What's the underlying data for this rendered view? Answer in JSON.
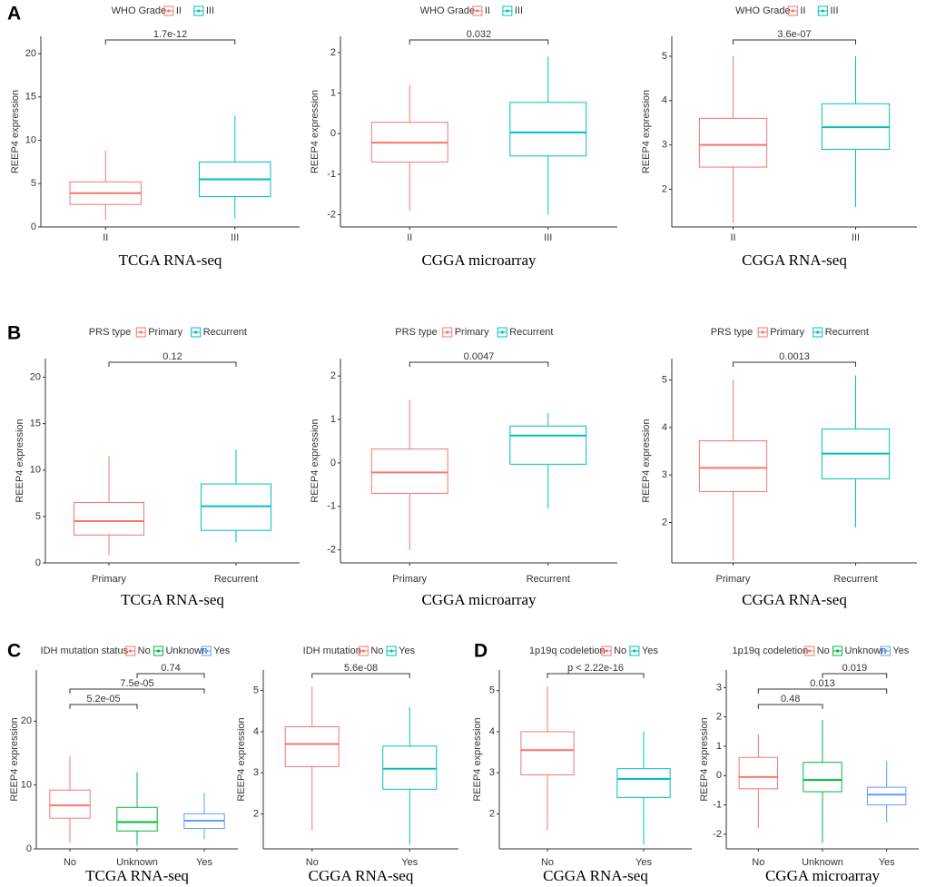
{
  "panel_labels": [
    "A",
    "B",
    "C",
    "D"
  ],
  "chart_data": [
    {
      "type": "box",
      "legend_title": "WHO Grade",
      "categories": [
        "II",
        "III"
      ],
      "colors": [
        "#F8766D",
        "#00BFC4"
      ],
      "ylabel": "REEP4 expression",
      "title": "TCGA RNA-seq",
      "ylim": [
        0,
        22
      ],
      "yticks": [
        0,
        5,
        10,
        15,
        20
      ],
      "boxes": [
        {
          "low": 0.8,
          "q1": 2.6,
          "median": 3.9,
          "q3": 5.2,
          "high": 8.8
        },
        {
          "low": 1,
          "q1": 3.5,
          "median": 5.5,
          "q3": 7.5,
          "high": 12.8
        }
      ],
      "comparisons": [
        {
          "pair": [
            "II",
            "III"
          ],
          "label": "1.7e-12"
        }
      ]
    },
    {
      "type": "box",
      "legend_title": "WHO Grade",
      "categories": [
        "II",
        "III"
      ],
      "colors": [
        "#F8766D",
        "#00BFC4"
      ],
      "ylabel": "REEP4 expression",
      "title": "CGGA microarray",
      "ylim": [
        -2.3,
        2.4
      ],
      "yticks": [
        -2,
        -1,
        0,
        1,
        2
      ],
      "boxes": [
        {
          "low": -1.9,
          "q1": -0.7,
          "median": -0.22,
          "q3": 0.28,
          "high": 1.2
        },
        {
          "low": -2.0,
          "q1": -0.55,
          "median": 0.03,
          "q3": 0.77,
          "high": 1.9
        }
      ],
      "comparisons": [
        {
          "pair": [
            "II",
            "III"
          ],
          "label": "0.032"
        }
      ]
    },
    {
      "type": "box",
      "legend_title": "WHO Grade",
      "categories": [
        "II",
        "III"
      ],
      "colors": [
        "#F8766D",
        "#00BFC4"
      ],
      "ylabel": "REEP4 expression",
      "title": "CGGA RNA-seq",
      "ylim": [
        1.15,
        5.45
      ],
      "yticks": [
        2,
        3,
        4,
        5
      ],
      "boxes": [
        {
          "low": 1.25,
          "q1": 2.5,
          "median": 3.0,
          "q3": 3.6,
          "high": 5.0
        },
        {
          "low": 1.6,
          "q1": 2.9,
          "median": 3.4,
          "q3": 3.93,
          "high": 5.0
        }
      ],
      "comparisons": [
        {
          "pair": [
            "II",
            "III"
          ],
          "label": "3.6e-07"
        }
      ]
    },
    {
      "type": "box",
      "legend_title": "PRS type",
      "categories": [
        "Primary",
        "Recurrent"
      ],
      "colors": [
        "#F8766D",
        "#00BFC4"
      ],
      "ylabel": "REEP4 expression",
      "title": "TCGA RNA-seq",
      "ylim": [
        0,
        22
      ],
      "yticks": [
        0,
        5,
        10,
        15,
        20
      ],
      "boxes": [
        {
          "low": 0.8,
          "q1": 3.0,
          "median": 4.5,
          "q3": 6.5,
          "high": 11.5
        },
        {
          "low": 2.2,
          "q1": 3.5,
          "median": 6.1,
          "q3": 8.5,
          "high": 12.2
        }
      ],
      "comparisons": [
        {
          "pair": [
            "Primary",
            "Recurrent"
          ],
          "label": "0.12"
        }
      ]
    },
    {
      "type": "box",
      "legend_title": "PRS type",
      "categories": [
        "Primary",
        "Recurrent"
      ],
      "colors": [
        "#F8766D",
        "#00BFC4"
      ],
      "ylabel": "REEP4 expression",
      "title": "CGGA microarray",
      "ylim": [
        -2.3,
        2.4
      ],
      "yticks": [
        -2,
        -1,
        0,
        1,
        2
      ],
      "boxes": [
        {
          "low": -2.0,
          "q1": -0.7,
          "median": -0.22,
          "q3": 0.32,
          "high": 1.45
        },
        {
          "low": -1.05,
          "q1": -0.03,
          "median": 0.63,
          "q3": 0.85,
          "high": 1.15
        }
      ],
      "comparisons": [
        {
          "pair": [
            "Primary",
            "Recurrent"
          ],
          "label": "0.0047"
        }
      ]
    },
    {
      "type": "box",
      "legend_title": "PRS type",
      "categories": [
        "Primary",
        "Recurrent"
      ],
      "colors": [
        "#F8766D",
        "#00BFC4"
      ],
      "ylabel": "REEP4 expression",
      "title": "CGGA RNA-seq",
      "ylim": [
        1.15,
        5.45
      ],
      "yticks": [
        2,
        3,
        4,
        5
      ],
      "boxes": [
        {
          "low": 1.2,
          "q1": 2.65,
          "median": 3.15,
          "q3": 3.72,
          "high": 5.0
        },
        {
          "low": 1.9,
          "q1": 2.92,
          "median": 3.45,
          "q3": 3.97,
          "high": 5.1
        }
      ],
      "comparisons": [
        {
          "pair": [
            "Primary",
            "Recurrent"
          ],
          "label": "0.0013"
        }
      ]
    },
    {
      "type": "box",
      "legend_title": "IDH mutation status",
      "categories": [
        "No",
        "Unknown",
        "Yes"
      ],
      "colors": [
        "#F8766D",
        "#00BA38",
        "#619CFF"
      ],
      "ylabel": "REEP4 expression",
      "title": "TCGA RNA-seq",
      "ylim": [
        0,
        28
      ],
      "yticks": [
        0,
        10,
        20
      ],
      "boxes": [
        {
          "low": 1,
          "q1": 4.8,
          "median": 6.8,
          "q3": 9.2,
          "high": 14.5
        },
        {
          "low": 0.5,
          "q1": 2.8,
          "median": 4.2,
          "q3": 6.5,
          "high": 12
        },
        {
          "low": 1.5,
          "q1": 3.2,
          "median": 4.4,
          "q3": 5.5,
          "high": 8.8
        }
      ],
      "comparisons": [
        {
          "pair": [
            "No",
            "Unknown"
          ],
          "label": "5.2e-05"
        },
        {
          "pair": [
            "No",
            "Yes"
          ],
          "label": "7.5e-05"
        },
        {
          "pair": [
            "Unknown",
            "Yes"
          ],
          "label": "0.74"
        }
      ]
    },
    {
      "type": "box",
      "legend_title": "IDH mutation",
      "categories": [
        "No",
        "Yes"
      ],
      "colors": [
        "#F8766D",
        "#00BFC4"
      ],
      "ylabel": "REEP4 expression",
      "title": "CGGA RNA-seq",
      "ylim": [
        1.15,
        5.5
      ],
      "yticks": [
        2,
        3,
        4,
        5
      ],
      "boxes": [
        {
          "low": 1.6,
          "q1": 3.15,
          "median": 3.7,
          "q3": 4.12,
          "high": 5.1
        },
        {
          "low": 1.25,
          "q1": 2.6,
          "median": 3.1,
          "q3": 3.65,
          "high": 4.6
        }
      ],
      "comparisons": [
        {
          "pair": [
            "No",
            "Yes"
          ],
          "label": "5.6e-08"
        }
      ]
    },
    {
      "type": "box",
      "legend_title": "1p19q codeletion",
      "categories": [
        "No",
        "Yes"
      ],
      "colors": [
        "#F8766D",
        "#00BFC4"
      ],
      "ylabel": "REEP4 expression",
      "title": "CGGA RNA-seq",
      "ylim": [
        1.15,
        5.5
      ],
      "yticks": [
        2,
        3,
        4,
        5
      ],
      "boxes": [
        {
          "low": 1.6,
          "q1": 2.95,
          "median": 3.55,
          "q3": 4.0,
          "high": 5.1
        },
        {
          "low": 1.25,
          "q1": 2.4,
          "median": 2.85,
          "q3": 3.1,
          "high": 4.0
        }
      ],
      "comparisons": [
        {
          "pair": [
            "No",
            "Yes"
          ],
          "label": "p < 2.22e-16"
        }
      ]
    },
    {
      "type": "box",
      "legend_title": "1p19q codeletion",
      "categories": [
        "No",
        "Unknown",
        "Yes"
      ],
      "colors": [
        "#F8766D",
        "#00BA38",
        "#619CFF"
      ],
      "ylabel": "REEP4 expression",
      "title": "CGGA microarray",
      "ylim": [
        -2.5,
        3.6
      ],
      "yticks": [
        -2,
        -1,
        0,
        1,
        2,
        3
      ],
      "boxes": [
        {
          "low": -1.8,
          "q1": -0.45,
          "median": -0.05,
          "q3": 0.62,
          "high": 1.4
        },
        {
          "low": -2.3,
          "q1": -0.55,
          "median": -0.15,
          "q3": 0.45,
          "high": 1.9
        },
        {
          "low": -1.6,
          "q1": -1.0,
          "median": -0.65,
          "q3": -0.4,
          "high": 0.5
        }
      ],
      "comparisons": [
        {
          "pair": [
            "No",
            "Unknown"
          ],
          "label": "0.48"
        },
        {
          "pair": [
            "No",
            "Yes"
          ],
          "label": "0.013"
        },
        {
          "pair": [
            "Unknown",
            "Yes"
          ],
          "label": "0.019"
        }
      ]
    }
  ]
}
